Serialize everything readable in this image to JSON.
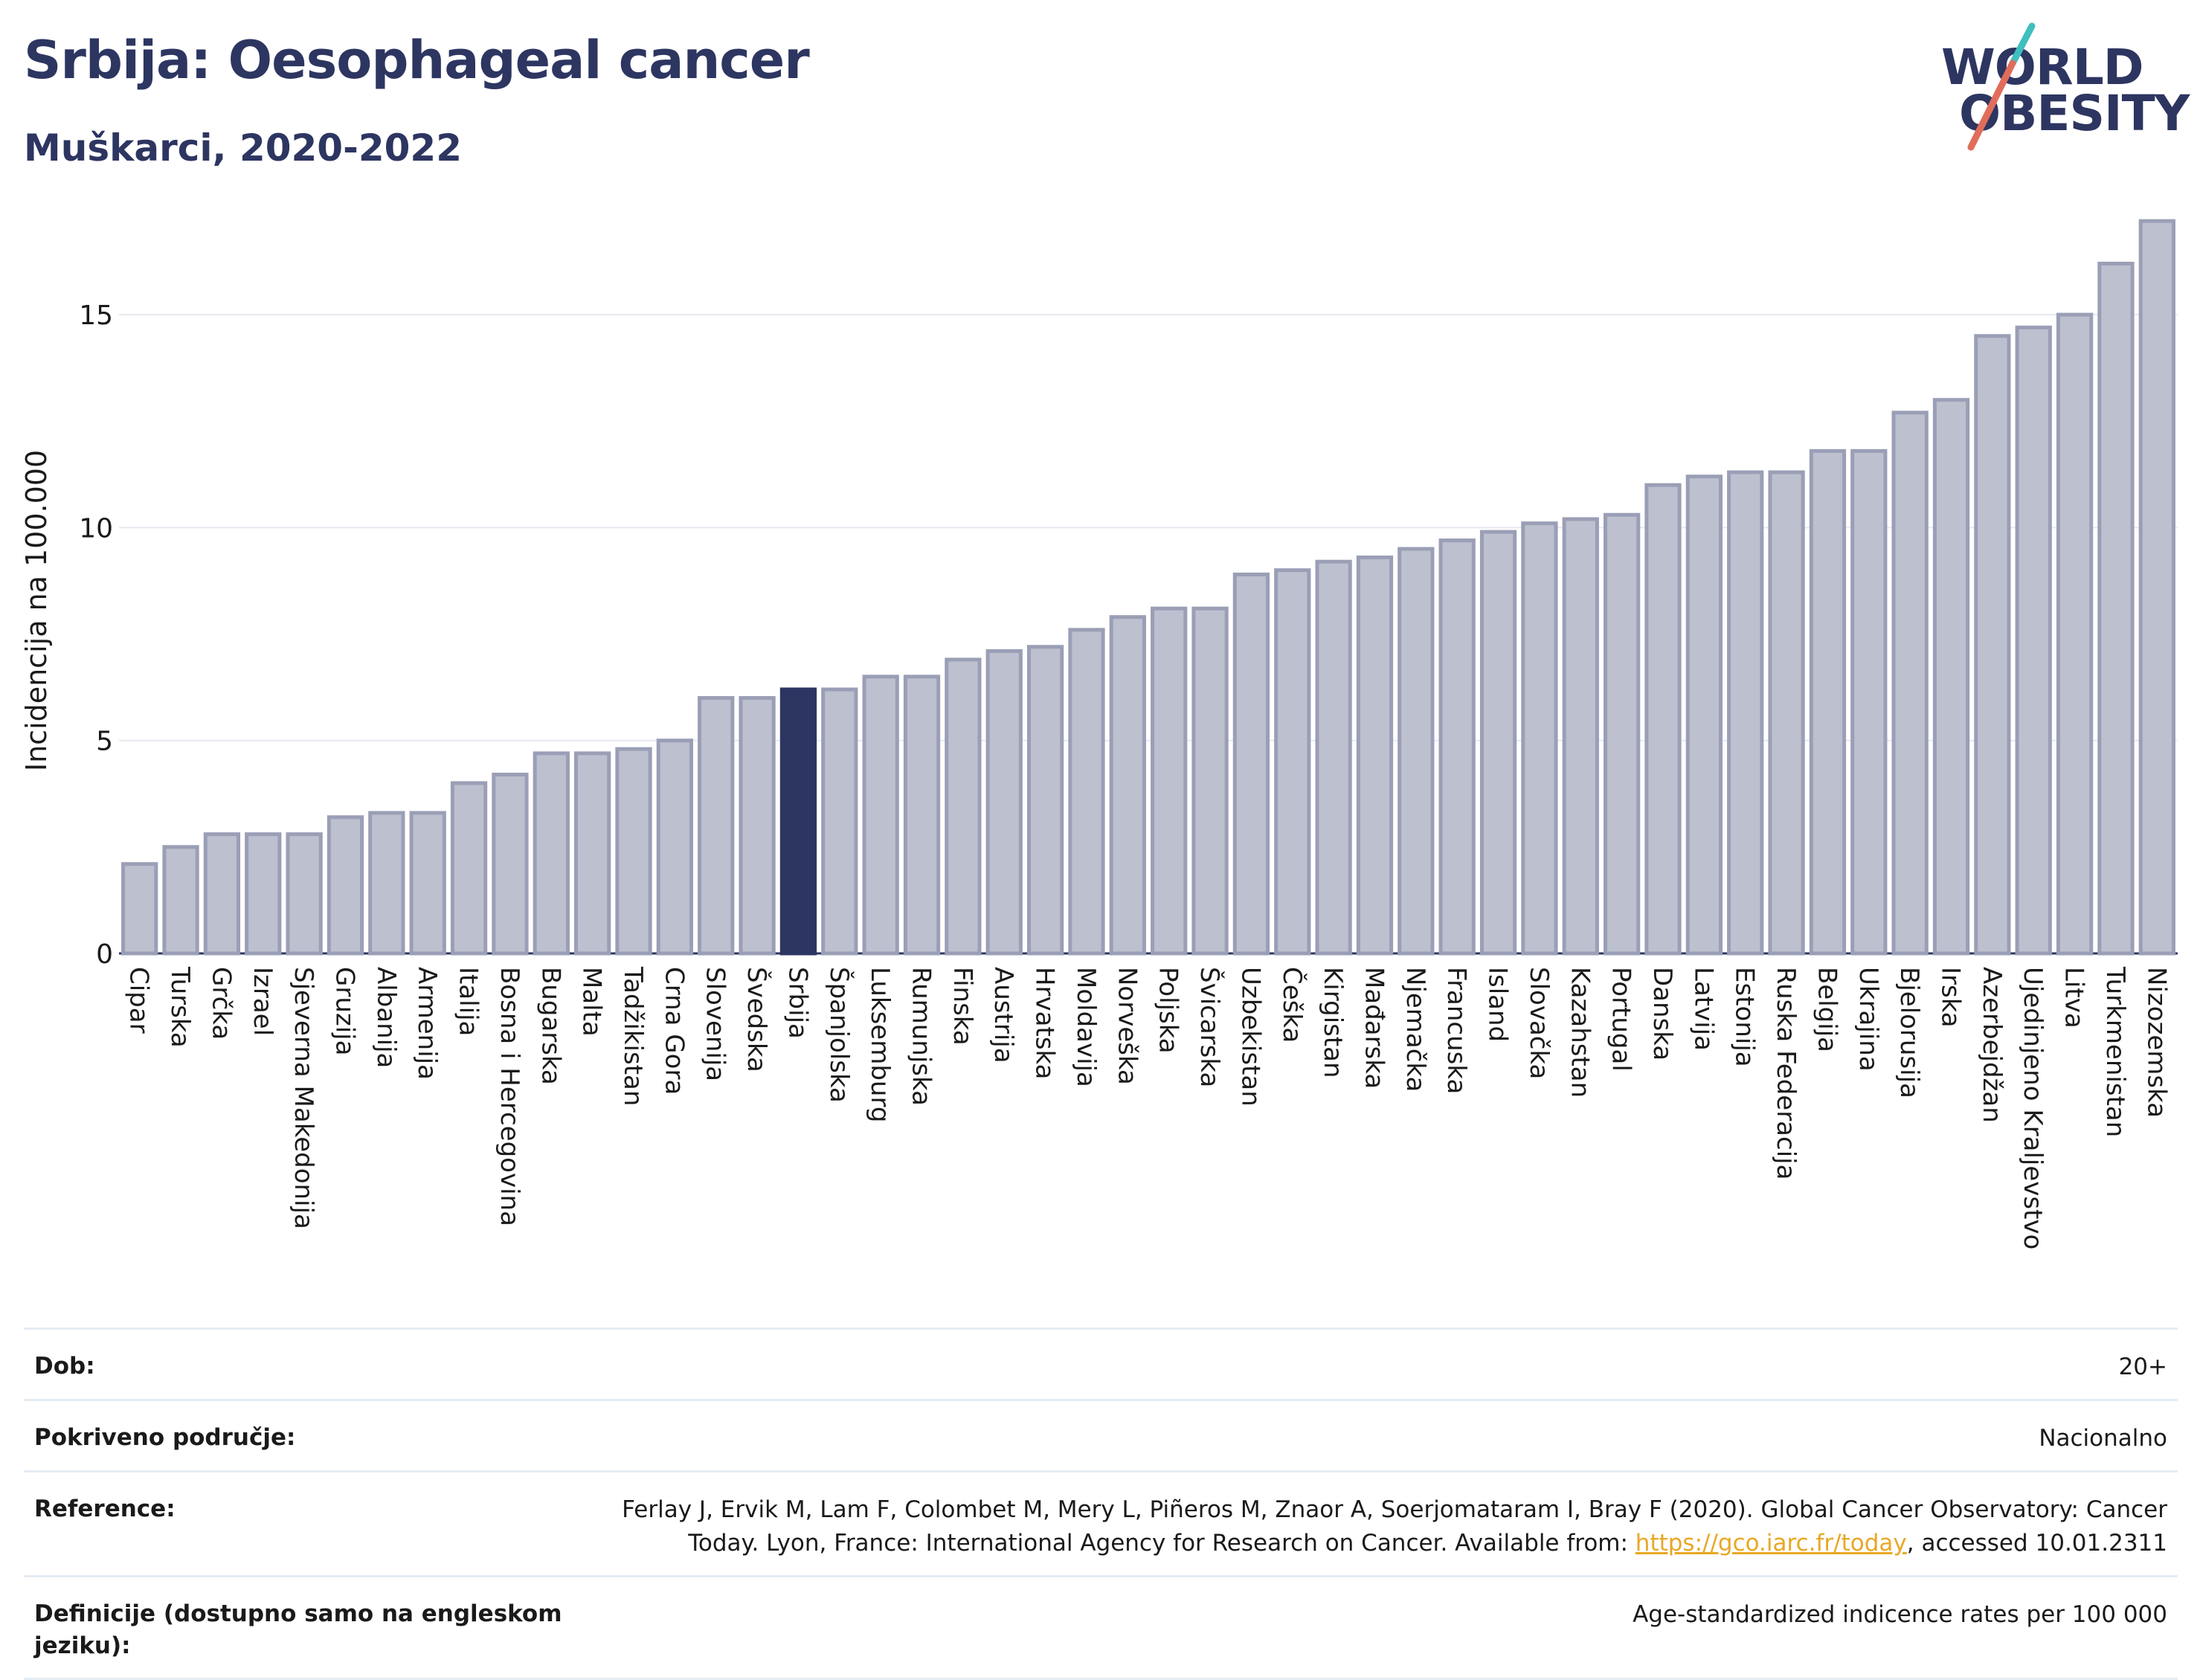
{
  "header": {
    "title": "Srbija: Oesophageal cancer",
    "subtitle": "Muškarci, 2020-2022"
  },
  "logo": {
    "line1": "WORLD",
    "line2": "OBESITY"
  },
  "colors": {
    "highlight": "#2d3561",
    "bar_fill": "#bcc0cf",
    "bar_stroke": "#9a9fb6",
    "grid": "#e6e9ef",
    "brand_teal": "#3fbfbf",
    "brand_coral": "#e06d5a"
  },
  "chart_data": {
    "type": "bar",
    "ylabel": "Incidencija na 100.000",
    "xlabel": "",
    "ylim": [
      0,
      17.5
    ],
    "yticks": [
      0,
      5,
      10,
      15
    ],
    "grid": true,
    "highlight_category": "Srbija",
    "categories": [
      "Cipar",
      "Turska",
      "Grčka",
      "Izrael",
      "Sjeverna Makedonija",
      "Gruzija",
      "Albanija",
      "Armenija",
      "Italija",
      "Bosna i Hercegovina",
      "Bugarska",
      "Malta",
      "Tadžikistan",
      "Crna Gora",
      "Slovenija",
      "Švedska",
      "Srbija",
      "Španjolska",
      "Luksemburg",
      "Rumunjska",
      "Finska",
      "Austrija",
      "Hrvatska",
      "Moldavija",
      "Norveška",
      "Poljska",
      "Švicarska",
      "Uzbekistan",
      "Češka",
      "Kirgistan",
      "Mađarska",
      "Njemačka",
      "Francuska",
      "Island",
      "Slovačka",
      "Kazahstan",
      "Portugal",
      "Danska",
      "Latvija",
      "Estonija",
      "Ruska Federacija",
      "Belgija",
      "Ukrajina",
      "Bjelorusija",
      "Irska",
      "Azerbejdžan",
      "Ujedinjeno Kraljevstvo",
      "Litva",
      "Turkmenistan",
      "Nizozemska"
    ],
    "values": [
      2.1,
      2.5,
      2.8,
      2.8,
      2.8,
      3.2,
      3.3,
      3.3,
      4.0,
      4.2,
      4.7,
      4.7,
      4.8,
      5.0,
      6.0,
      6.0,
      6.2,
      6.2,
      6.5,
      6.5,
      6.9,
      7.1,
      7.2,
      7.6,
      7.9,
      8.1,
      8.1,
      8.9,
      9.0,
      9.2,
      9.3,
      9.5,
      9.7,
      9.9,
      10.1,
      10.2,
      10.3,
      11.0,
      11.2,
      11.3,
      11.3,
      11.8,
      11.8,
      12.7,
      13.0,
      14.5,
      14.7,
      15.0,
      16.2,
      17.2
    ]
  },
  "info": {
    "rows": [
      {
        "label": "Dob:",
        "value": "20+"
      },
      {
        "label": "Pokriveno područje:",
        "value": "Nacionalno"
      },
      {
        "label": "Reference:",
        "value_before": "Ferlay J, Ervik M, Lam F, Colombet M, Mery L, Piñeros M, Znaor A, Soerjomataram I, Bray F (2020). Global Cancer Observatory: Cancer Today. Lyon, France: International Agency for Research on Cancer. Available from: ",
        "link": "https://gco.iarc.fr/today",
        "value_after": ", accessed 10.01.2311"
      },
      {
        "label": "Definicije (dostupno samo na engleskom jeziku):",
        "value": "Age-standardized indicence rates per 100 000"
      }
    ]
  }
}
